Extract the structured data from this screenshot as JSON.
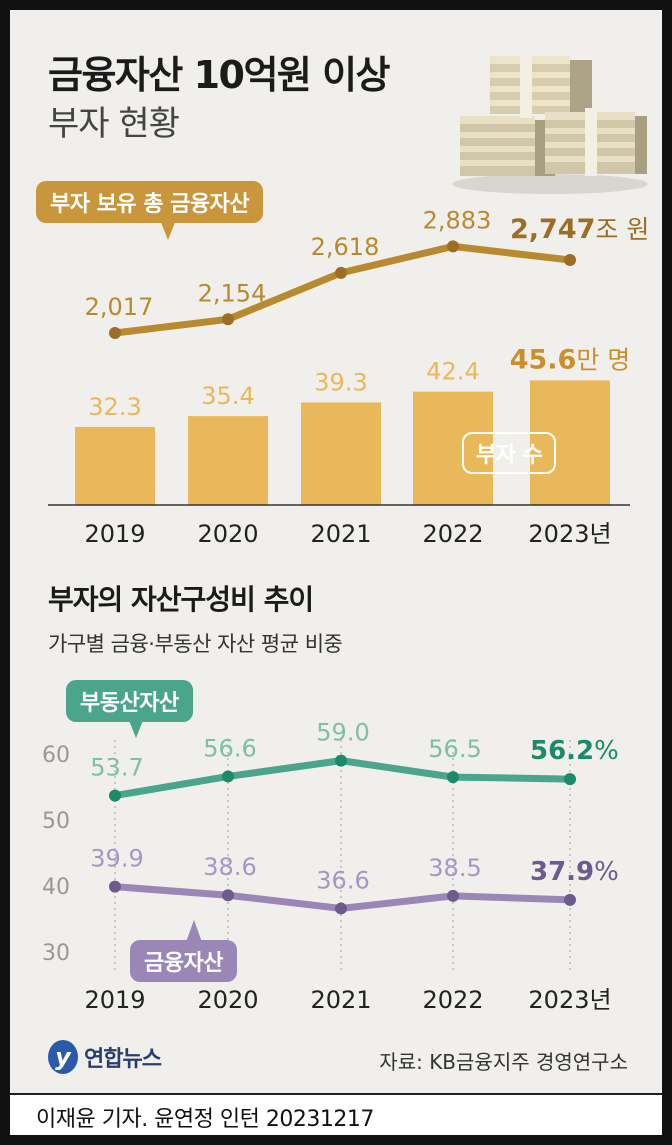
{
  "header": {
    "title": "금융자산 10억원 이상",
    "subtitle": "부자 현황"
  },
  "section2": {
    "title": "부자의 자산구성비 추이",
    "subtitle": "가구별 금융·부동산 자산 평균 비중"
  },
  "source": "자료: KB금융지주 경영연구소",
  "logo": {
    "mark": "y",
    "text": "연합뉴스"
  },
  "footer": "이재윤 기자. 윤연정 인턴  20231217",
  "colors": {
    "gold": "#e8b85a",
    "gold_dark": "#b88a30",
    "gold_text": "#ca8f2c",
    "teal": "#4aa58a",
    "teal_dark": "#1c8a6a",
    "purple": "#9b86b8",
    "purple_dark": "#6e5b8e"
  },
  "chart_data": [
    {
      "type": "bar",
      "categories": [
        "2019",
        "2020",
        "2021",
        "2022",
        "2023년"
      ],
      "series": [
        {
          "name": "부자 수",
          "values": [
            32.3,
            35.4,
            39.3,
            42.4,
            45.6
          ]
        }
      ],
      "value_labels": [
        "32.3",
        "35.4",
        "39.3",
        "42.4",
        "45.6"
      ],
      "last_unit": "만 명",
      "xlabel": "",
      "ylabel": ""
    },
    {
      "type": "line",
      "categories": [
        "2019",
        "2020",
        "2021",
        "2022",
        "2023년"
      ],
      "series": [
        {
          "name": "부자 보유 총 금융자산",
          "values": [
            2017,
            2154,
            2618,
            2883,
            2747
          ]
        }
      ],
      "value_labels": [
        "2,017",
        "2,154",
        "2,618",
        "2,883",
        "2,747"
      ],
      "last_unit": "조 원"
    },
    {
      "type": "line",
      "categories": [
        "2019",
        "2020",
        "2021",
        "2022",
        "2023년"
      ],
      "series": [
        {
          "name": "부동산자산",
          "values": [
            53.7,
            56.6,
            59.0,
            56.5,
            56.2
          ]
        },
        {
          "name": "금융자산",
          "values": [
            39.9,
            38.6,
            36.6,
            38.5,
            37.9
          ]
        }
      ],
      "value_labels": [
        [
          "53.7",
          "56.6",
          "59.0",
          "56.5",
          "56.2"
        ],
        [
          "39.9",
          "38.6",
          "36.6",
          "38.5",
          "37.9"
        ]
      ],
      "last_unit": "%",
      "yticks": [
        "30",
        "40",
        "50",
        "60"
      ],
      "ylim": [
        30,
        62
      ],
      "grid": "vertical dotted"
    }
  ]
}
